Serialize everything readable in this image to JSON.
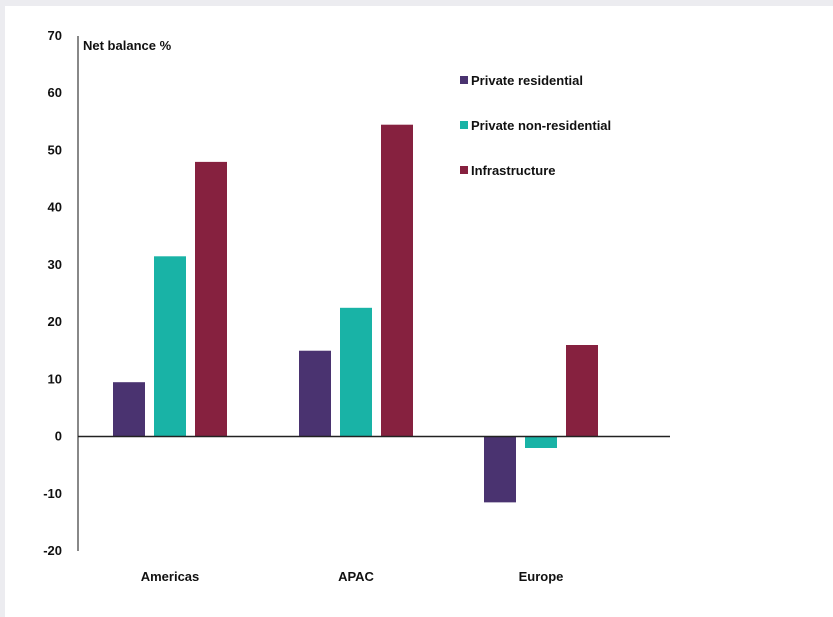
{
  "chart_data": {
    "type": "bar",
    "ylabel": "Net balance %",
    "categories": [
      "Americas",
      "APAC",
      "Europe"
    ],
    "ylim": [
      -20,
      70
    ],
    "yticks": [
      70,
      60,
      50,
      40,
      30,
      20,
      10,
      0,
      -10,
      -20
    ],
    "series": [
      {
        "name": "Private residential",
        "color": "#4a3370",
        "values": [
          9.5,
          15,
          -11.5
        ]
      },
      {
        "name": "Private non-residential",
        "color": "#19b3a6",
        "values": [
          31.5,
          22.5,
          -2
        ]
      },
      {
        "name": "Infrastructure",
        "color": "#86213f",
        "values": [
          48,
          54.5,
          16
        ]
      }
    ],
    "legend": "top-right",
    "grid": false
  }
}
